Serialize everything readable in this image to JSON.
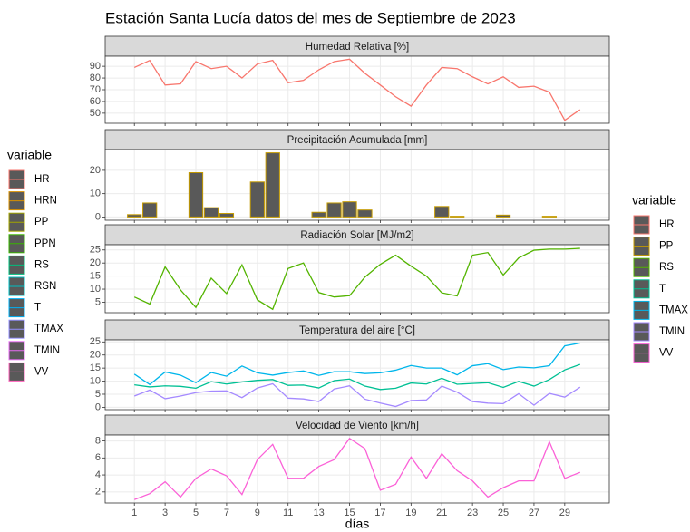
{
  "title": "Estación Santa Lucía datos del mes de Septiembre de 2023",
  "xlabel": "días",
  "x": [
    1,
    2,
    3,
    4,
    5,
    6,
    7,
    8,
    9,
    10,
    11,
    12,
    13,
    14,
    15,
    16,
    17,
    18,
    19,
    20,
    21,
    22,
    23,
    24,
    25,
    26,
    27,
    28,
    29,
    30
  ],
  "xlim": [
    -0.9,
    31.9
  ],
  "xticks": [
    1,
    3,
    5,
    7,
    9,
    11,
    13,
    15,
    17,
    19,
    21,
    23,
    25,
    27,
    29
  ],
  "grid": true,
  "legends": [
    {
      "title": "variable",
      "position": "left",
      "entries": [
        {
          "name": "HR",
          "color": "#F8766D"
        },
        {
          "name": "HRN",
          "color": "#D89000"
        },
        {
          "name": "PP",
          "color": "#A3A500"
        },
        {
          "name": "PPN",
          "color": "#39B600"
        },
        {
          "name": "RS",
          "color": "#00BF7D"
        },
        {
          "name": "RSN",
          "color": "#00BFC4"
        },
        {
          "name": "T",
          "color": "#00B0F6"
        },
        {
          "name": "TMAX",
          "color": "#9590FF"
        },
        {
          "name": "TMIN",
          "color": "#E76BF3"
        },
        {
          "name": "VV",
          "color": "#FF62BC"
        }
      ]
    },
    {
      "title": "variable",
      "position": "right",
      "entries": [
        {
          "name": "HR",
          "color": "#F8766D"
        },
        {
          "name": "PP",
          "color": "#C49A00"
        },
        {
          "name": "RS",
          "color": "#53B400"
        },
        {
          "name": "T",
          "color": "#00C094"
        },
        {
          "name": "TMAX",
          "color": "#00B6EB"
        },
        {
          "name": "TMIN",
          "color": "#A58AFF"
        },
        {
          "name": "VV",
          "color": "#FB61D7"
        }
      ]
    }
  ],
  "chart_data": [
    {
      "type": "line",
      "title": "Humedad Relativa [%]",
      "ylim": [
        41.4,
        98.6
      ],
      "yticks": [
        50,
        60,
        70,
        80,
        90
      ],
      "series": [
        {
          "color": "#F8766D",
          "values": [
            89,
            95,
            74,
            75,
            94,
            88,
            90,
            80,
            92,
            95,
            76,
            78,
            87,
            94,
            96,
            84,
            74,
            64,
            56,
            74,
            89,
            88,
            81,
            75,
            81,
            72,
            73,
            68,
            44,
            53
          ]
        }
      ]
    },
    {
      "type": "bar",
      "title": "Precipitación Acumulada [mm]",
      "ylim": [
        -1.4,
        28.9
      ],
      "yticks": [
        0,
        10,
        20
      ],
      "series": [
        {
          "color": "#C49A00",
          "values": [
            1,
            6,
            0,
            0,
            19,
            4,
            1.5,
            0,
            15,
            27.5,
            0,
            0,
            2,
            6,
            6.5,
            3,
            0,
            0,
            0,
            0,
            4.5,
            0.3,
            0,
            0,
            0.8,
            0,
            0,
            0.3,
            0,
            0
          ]
        }
      ]
    },
    {
      "type": "line",
      "title": "Radiación Solar [MJ/m2]",
      "ylim": [
        1,
        27
      ],
      "yticks": [
        5,
        10,
        15,
        20,
        25
      ],
      "series": [
        {
          "color": "#53B400",
          "values": [
            7,
            4.3,
            18.5,
            9.7,
            3,
            14.2,
            8.3,
            19.3,
            5.9,
            2.3,
            17.9,
            20,
            8.7,
            7,
            7.5,
            14.6,
            19.5,
            23,
            18.8,
            15,
            8.6,
            7.4,
            23,
            24,
            15.4,
            21.9,
            24.9,
            25.3,
            25.3,
            25.6
          ]
        }
      ]
    },
    {
      "type": "line",
      "title": "Temperatura del aire [°C]",
      "ylim": [
        -0.9,
        25.8
      ],
      "yticks": [
        0,
        5,
        10,
        15,
        20,
        25
      ],
      "series": [
        {
          "color": "#00B6EB",
          "values": [
            12.7,
            8.7,
            13.5,
            12.3,
            9.4,
            13.3,
            11.9,
            15.8,
            13.2,
            12.3,
            13.3,
            13.9,
            12.2,
            13.6,
            13.6,
            12.9,
            13.2,
            14.2,
            16,
            15,
            15,
            12.4,
            15.9,
            16.7,
            14.4,
            15.4,
            15.1,
            15.9,
            23.5,
            24.6
          ]
        },
        {
          "color": "#00C094",
          "values": [
            8.6,
            7.8,
            8.2,
            8,
            7.3,
            9.8,
            8.9,
            9.7,
            10.3,
            10.6,
            8.4,
            8.5,
            7.4,
            10.2,
            10.8,
            8.1,
            6.8,
            7.3,
            9.3,
            8.9,
            11.1,
            8.8,
            9.1,
            9.4,
            7.6,
            9.9,
            8.1,
            10.6,
            14.3,
            16.4
          ]
        },
        {
          "color": "#A58AFF",
          "values": [
            4.3,
            6.6,
            3.3,
            4.3,
            5.6,
            6.2,
            6.3,
            3.7,
            7.4,
            9,
            3.5,
            3.2,
            2.2,
            7,
            8.2,
            3.1,
            1.6,
            0.3,
            2.6,
            2.8,
            8.1,
            5.8,
            2.2,
            1.6,
            1.4,
            5.2,
            0.8,
            5.3,
            3.9,
            7.7
          ]
        }
      ]
    },
    {
      "type": "line",
      "title": "Velocidad de Viento [km/h]",
      "ylim": [
        0.7,
        8.7
      ],
      "yticks": [
        2,
        4,
        6,
        8
      ],
      "series": [
        {
          "color": "#FB61D7",
          "values": [
            1.1,
            1.8,
            3.2,
            1.4,
            3.6,
            4.7,
            3.9,
            1.7,
            5.8,
            7.6,
            3.6,
            3.6,
            5,
            5.8,
            8.3,
            7.1,
            2.2,
            2.9,
            6.1,
            3.6,
            6.5,
            4.5,
            3.3,
            1.4,
            2.5,
            3.3,
            3.3,
            7.9,
            3.6,
            4.3
          ]
        }
      ]
    }
  ]
}
